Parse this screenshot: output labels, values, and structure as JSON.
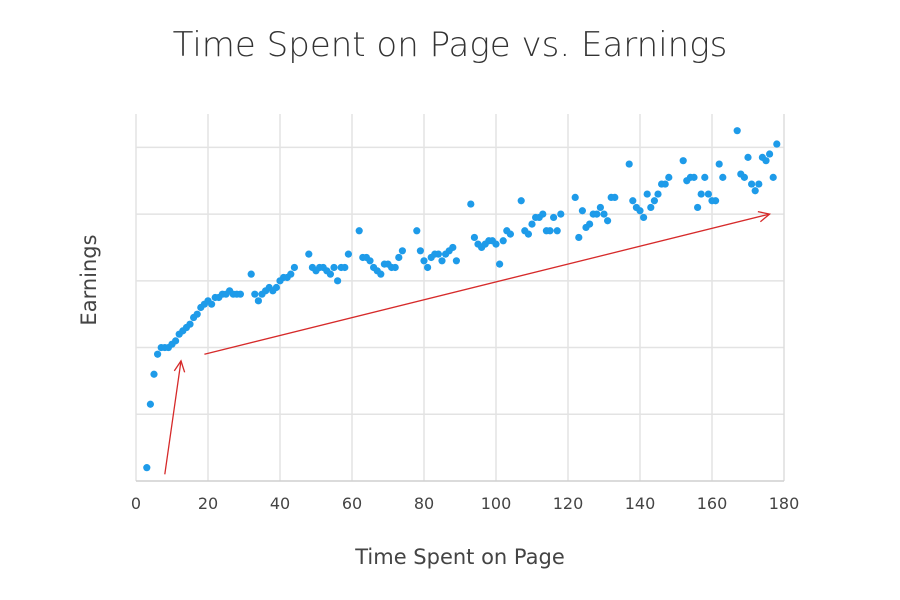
{
  "chart_data": {
    "type": "scatter",
    "title": "Time Spent on Page vs. Earnings",
    "xlabel": "Time Spent on Page",
    "ylabel": "Earnings",
    "xlim": [
      0,
      180
    ],
    "ylim": [
      0,
      5.5
    ],
    "x_ticks": [
      0,
      20,
      40,
      60,
      80,
      100,
      120,
      140,
      160,
      180
    ],
    "y_ticks_labeled": false,
    "grid": true,
    "point_color": "#1e9be9",
    "annotation_color": "#d62a2a",
    "series": [
      {
        "x": [
          3,
          4,
          5,
          6,
          7,
          8,
          9,
          10,
          11,
          12,
          13,
          14,
          15,
          16,
          17,
          18,
          19,
          20,
          21,
          22,
          23,
          24,
          25,
          26,
          27,
          28,
          29,
          32,
          33,
          34,
          35,
          36,
          37,
          38,
          39,
          40,
          41,
          42,
          43,
          44,
          48,
          49,
          50,
          51,
          52,
          53,
          54,
          55,
          56,
          57,
          58,
          59,
          62,
          63,
          64,
          65,
          66,
          67,
          68,
          69,
          70,
          71,
          72,
          73,
          74,
          78,
          79,
          80,
          81,
          82,
          83,
          84,
          85,
          86,
          87,
          88,
          89,
          93,
          94,
          95,
          96,
          97,
          98,
          99,
          100,
          101,
          102,
          103,
          104,
          107,
          108,
          109,
          110,
          111,
          112,
          113,
          114,
          115,
          116,
          117,
          118,
          122,
          123,
          124,
          125,
          126,
          127,
          128,
          129,
          130,
          131,
          132,
          133,
          137,
          138,
          139,
          140,
          141,
          142,
          143,
          144,
          145,
          146,
          147,
          148,
          152,
          153,
          154,
          155,
          156,
          157,
          158,
          159,
          160,
          161,
          162,
          163,
          167,
          168,
          169,
          170,
          171,
          172,
          173,
          174,
          175,
          176,
          177,
          178
        ],
        "y": [
          0.2,
          1.15,
          1.6,
          1.9,
          2.0,
          2.0,
          2.0,
          2.05,
          2.1,
          2.2,
          2.25,
          2.3,
          2.35,
          2.45,
          2.5,
          2.6,
          2.65,
          2.7,
          2.65,
          2.75,
          2.75,
          2.8,
          2.8,
          2.85,
          2.8,
          2.8,
          2.8,
          3.1,
          2.8,
          2.7,
          2.8,
          2.85,
          2.9,
          2.85,
          2.9,
          3.0,
          3.05,
          3.05,
          3.1,
          3.2,
          3.4,
          3.2,
          3.15,
          3.2,
          3.2,
          3.15,
          3.1,
          3.2,
          3.0,
          3.2,
          3.2,
          3.4,
          3.75,
          3.35,
          3.35,
          3.3,
          3.2,
          3.15,
          3.1,
          3.25,
          3.25,
          3.2,
          3.2,
          3.35,
          3.45,
          3.75,
          3.45,
          3.3,
          3.2,
          3.35,
          3.4,
          3.4,
          3.3,
          3.4,
          3.45,
          3.5,
          3.3,
          4.15,
          3.65,
          3.55,
          3.5,
          3.55,
          3.6,
          3.6,
          3.55,
          3.25,
          3.6,
          3.75,
          3.7,
          4.2,
          3.75,
          3.7,
          3.85,
          3.95,
          3.95,
          4.0,
          3.75,
          3.75,
          3.95,
          3.75,
          4.0,
          4.25,
          3.65,
          4.05,
          3.8,
          3.85,
          4.0,
          4.0,
          4.1,
          4.0,
          3.9,
          4.25,
          4.25,
          4.75,
          4.2,
          4.1,
          4.05,
          3.95,
          4.3,
          4.1,
          4.2,
          4.3,
          4.45,
          4.45,
          4.55,
          4.8,
          4.5,
          4.55,
          4.55,
          4.1,
          4.3,
          4.55,
          4.3,
          4.2,
          4.2,
          4.75,
          4.55,
          5.25,
          4.6,
          4.55,
          4.85,
          4.45,
          4.35,
          4.45,
          4.85,
          4.8,
          4.9,
          4.55,
          5.05
        ]
      }
    ],
    "annotations": [
      {
        "type": "arrow",
        "from": [
          8,
          0.1
        ],
        "to": [
          12.5,
          1.8
        ]
      },
      {
        "type": "arrow",
        "from": [
          19,
          1.9
        ],
        "to": [
          176,
          4.0
        ]
      }
    ]
  }
}
